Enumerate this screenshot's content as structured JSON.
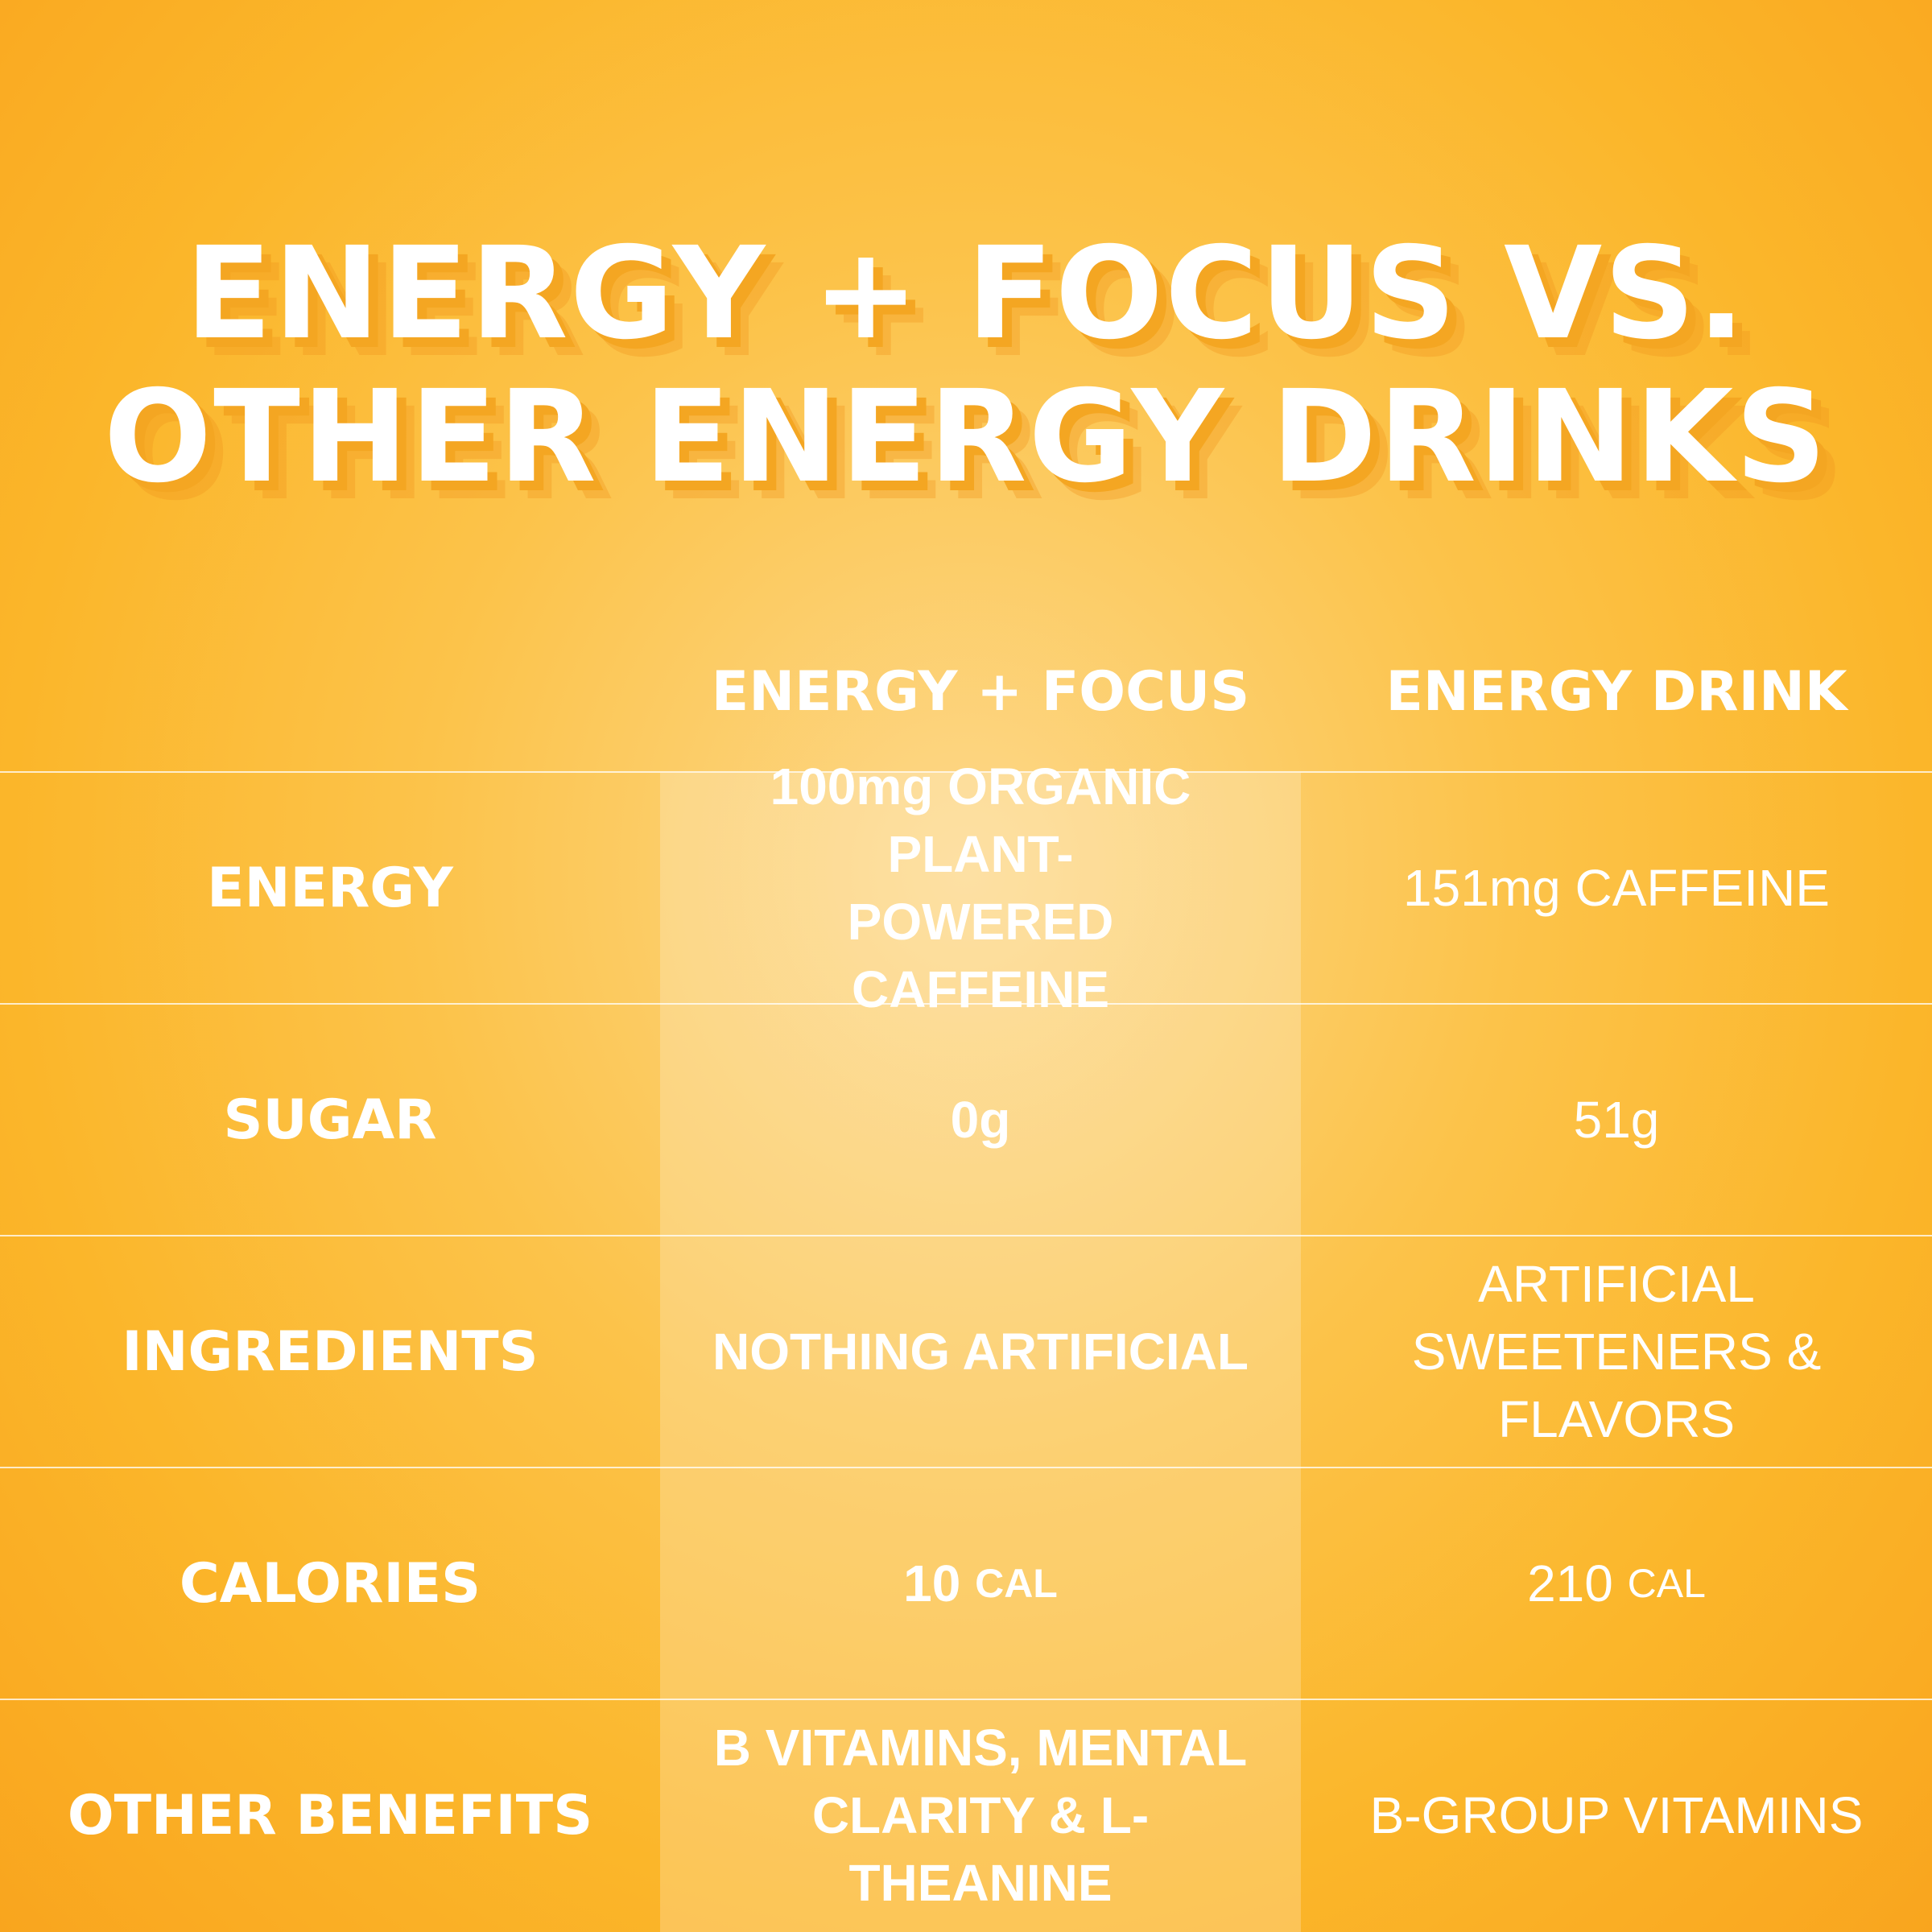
{
  "title": {
    "line1": "ENERGY + FOCUS VS.",
    "line2": "OTHER ENERGY DRINKS"
  },
  "columns": {
    "ours": "ENERGY + FOCUS",
    "theirs": "ENERGY DRINK"
  },
  "rows": [
    {
      "label": "ENERGY",
      "ours": "100mg ORGANIC PLANT-POWERED CAFFEINE",
      "theirs": "151mg CAFFEINE"
    },
    {
      "label": "SUGAR",
      "ours": "0g",
      "theirs": "51g"
    },
    {
      "label": "INGREDIENTS",
      "ours": "NOTHING ARTIFICIAL",
      "theirs": "ARTIFICIAL SWEETENERS & FLAVORS"
    },
    {
      "label": "CALORIES",
      "ours_value": "10",
      "ours_unit": "CAL",
      "theirs_value": "210",
      "theirs_unit": "CAL"
    },
    {
      "label": "OTHER BENEFITS",
      "ours": "B VITAMINS, MENTAL CLARITY & L-THEANINE",
      "theirs": "B-GROUP VITAMINS"
    }
  ],
  "colors": {
    "background": "#fbb62a",
    "text": "#ffffff",
    "title_shadow": "#f4a622"
  }
}
